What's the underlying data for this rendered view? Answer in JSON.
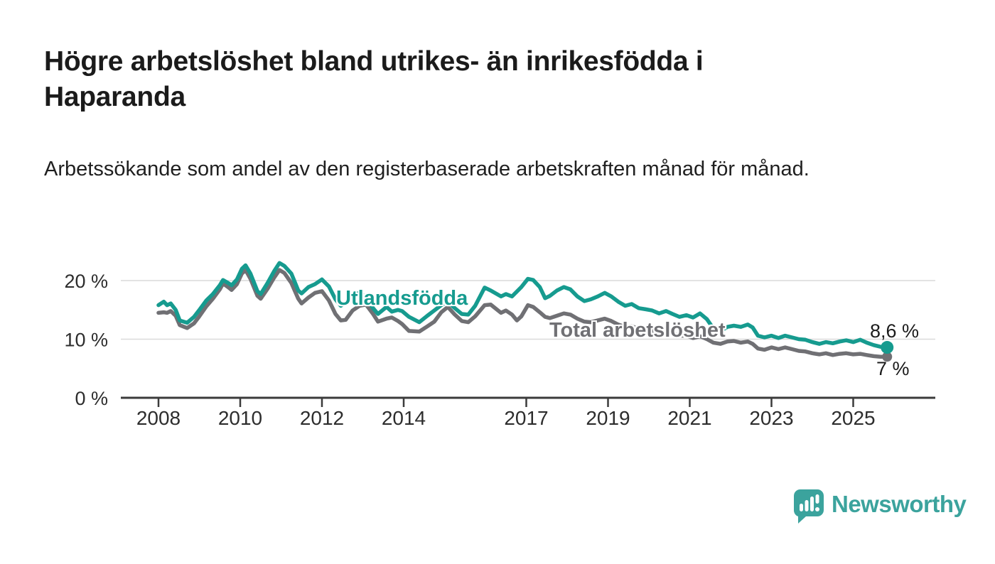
{
  "page": {
    "title": "Högre arbetslöshet bland utrikes- än inrikesfödda i Haparanda",
    "subtitle": "Arbetssökande som andel av den registerbaserade arbetskraften månad för månad."
  },
  "branding": {
    "wordmark": "Newsworthy",
    "icon": "newsworthy-speech-bubble-bar-chart-icon",
    "color": "#3BA39D"
  },
  "chart_data": {
    "type": "line",
    "title": "Högre arbetslöshet bland utrikes- än inrikesfödda i Haparanda",
    "subtitle": "Arbetssökande som andel av den registerbaserade arbetskraften månad för månad.",
    "unit": "%",
    "grid": "horizontal",
    "legend_position": "inline-labels",
    "x_axis": {
      "ticks": [
        2008,
        2010,
        2012,
        2014,
        2017,
        2019,
        2021,
        2023,
        2025
      ],
      "range": [
        2007.1,
        2027.0
      ]
    },
    "y_axis": {
      "ticks": [
        0,
        10,
        20
      ],
      "labels": [
        "0 %",
        "10 %",
        "20 %"
      ],
      "range": [
        0,
        24.2
      ]
    },
    "series": [
      {
        "name": "Utlandsfödda",
        "color": "#169b8f",
        "end_label": "8,6 %",
        "end_value": 8.6,
        "points": [
          [
            2008.0,
            15.8
          ],
          [
            2008.13,
            16.4
          ],
          [
            2008.21,
            15.8
          ],
          [
            2008.3,
            16.1
          ],
          [
            2008.42,
            15.0
          ],
          [
            2008.52,
            13.2
          ],
          [
            2008.7,
            12.8
          ],
          [
            2008.87,
            13.8
          ],
          [
            2009.0,
            15.0
          ],
          [
            2009.17,
            16.6
          ],
          [
            2009.33,
            17.7
          ],
          [
            2009.5,
            19.2
          ],
          [
            2009.58,
            20.1
          ],
          [
            2009.7,
            19.6
          ],
          [
            2009.79,
            19.2
          ],
          [
            2009.92,
            20.2
          ],
          [
            2010.04,
            22.0
          ],
          [
            2010.13,
            22.6
          ],
          [
            2010.25,
            21.2
          ],
          [
            2010.42,
            18.2
          ],
          [
            2010.5,
            17.7
          ],
          [
            2010.67,
            19.6
          ],
          [
            2010.83,
            21.6
          ],
          [
            2010.96,
            23.0
          ],
          [
            2011.08,
            22.5
          ],
          [
            2011.25,
            21.2
          ],
          [
            2011.42,
            18.3
          ],
          [
            2011.5,
            17.8
          ],
          [
            2011.67,
            18.9
          ],
          [
            2011.83,
            19.4
          ],
          [
            2012.0,
            20.2
          ],
          [
            2012.17,
            19.0
          ],
          [
            2012.33,
            16.8
          ],
          [
            2012.46,
            15.7
          ],
          [
            2012.58,
            16.3
          ],
          [
            2012.75,
            17.6
          ],
          [
            2012.92,
            17.9
          ],
          [
            2013.08,
            17.1
          ],
          [
            2013.25,
            15.3
          ],
          [
            2013.37,
            14.3
          ],
          [
            2013.58,
            15.5
          ],
          [
            2013.71,
            14.7
          ],
          [
            2013.86,
            15.0
          ],
          [
            2013.96,
            14.8
          ],
          [
            2014.13,
            13.8
          ],
          [
            2014.38,
            12.9
          ],
          [
            2014.58,
            14.0
          ],
          [
            2014.75,
            14.9
          ],
          [
            2014.92,
            15.8
          ],
          [
            2015.08,
            16.4
          ],
          [
            2015.25,
            15.3
          ],
          [
            2015.42,
            14.3
          ],
          [
            2015.58,
            14.2
          ],
          [
            2015.75,
            15.7
          ],
          [
            2015.98,
            18.8
          ],
          [
            2016.13,
            18.3
          ],
          [
            2016.38,
            17.3
          ],
          [
            2016.5,
            17.7
          ],
          [
            2016.65,
            17.3
          ],
          [
            2016.88,
            18.9
          ],
          [
            2017.04,
            20.3
          ],
          [
            2017.17,
            20.1
          ],
          [
            2017.33,
            18.9
          ],
          [
            2017.46,
            17.0
          ],
          [
            2017.58,
            17.4
          ],
          [
            2017.75,
            18.3
          ],
          [
            2017.92,
            18.9
          ],
          [
            2018.08,
            18.5
          ],
          [
            2018.25,
            17.3
          ],
          [
            2018.42,
            16.5
          ],
          [
            2018.58,
            16.8
          ],
          [
            2018.75,
            17.3
          ],
          [
            2018.92,
            17.9
          ],
          [
            2019.08,
            17.3
          ],
          [
            2019.25,
            16.4
          ],
          [
            2019.42,
            15.7
          ],
          [
            2019.58,
            16.0
          ],
          [
            2019.75,
            15.3
          ],
          [
            2019.92,
            15.1
          ],
          [
            2020.08,
            14.9
          ],
          [
            2020.25,
            14.4
          ],
          [
            2020.42,
            14.8
          ],
          [
            2020.58,
            14.3
          ],
          [
            2020.75,
            13.8
          ],
          [
            2020.92,
            14.1
          ],
          [
            2021.08,
            13.7
          ],
          [
            2021.25,
            14.4
          ],
          [
            2021.42,
            13.4
          ],
          [
            2021.58,
            11.8
          ],
          [
            2021.75,
            11.4
          ],
          [
            2021.92,
            12.1
          ],
          [
            2022.08,
            12.3
          ],
          [
            2022.25,
            12.1
          ],
          [
            2022.42,
            12.5
          ],
          [
            2022.54,
            12.0
          ],
          [
            2022.67,
            10.6
          ],
          [
            2022.83,
            10.3
          ],
          [
            2023.0,
            10.6
          ],
          [
            2023.17,
            10.2
          ],
          [
            2023.33,
            10.6
          ],
          [
            2023.5,
            10.3
          ],
          [
            2023.67,
            10.0
          ],
          [
            2023.83,
            9.9
          ],
          [
            2024.0,
            9.5
          ],
          [
            2024.17,
            9.2
          ],
          [
            2024.33,
            9.5
          ],
          [
            2024.5,
            9.3
          ],
          [
            2024.67,
            9.6
          ],
          [
            2024.83,
            9.8
          ],
          [
            2025.0,
            9.5
          ],
          [
            2025.17,
            9.9
          ],
          [
            2025.33,
            9.4
          ],
          [
            2025.5,
            9.0
          ],
          [
            2025.67,
            8.7
          ],
          [
            2025.83,
            8.6
          ]
        ]
      },
      {
        "name": "Total arbetslöshet",
        "color": "#707074",
        "end_label": "7 %",
        "end_value": 7.0,
        "points": [
          [
            2008.0,
            14.5
          ],
          [
            2008.13,
            14.6
          ],
          [
            2008.21,
            14.5
          ],
          [
            2008.3,
            14.8
          ],
          [
            2008.42,
            14.0
          ],
          [
            2008.52,
            12.4
          ],
          [
            2008.7,
            11.9
          ],
          [
            2008.87,
            12.7
          ],
          [
            2009.0,
            13.9
          ],
          [
            2009.17,
            15.6
          ],
          [
            2009.33,
            16.9
          ],
          [
            2009.5,
            18.5
          ],
          [
            2009.58,
            19.5
          ],
          [
            2009.7,
            18.9
          ],
          [
            2009.79,
            18.4
          ],
          [
            2009.92,
            19.4
          ],
          [
            2010.04,
            21.2
          ],
          [
            2010.13,
            21.8
          ],
          [
            2010.25,
            20.3
          ],
          [
            2010.42,
            17.4
          ],
          [
            2010.5,
            16.9
          ],
          [
            2010.67,
            18.6
          ],
          [
            2010.83,
            20.5
          ],
          [
            2010.96,
            21.8
          ],
          [
            2011.08,
            21.3
          ],
          [
            2011.25,
            19.6
          ],
          [
            2011.42,
            16.9
          ],
          [
            2011.5,
            16.1
          ],
          [
            2011.67,
            17.1
          ],
          [
            2011.83,
            17.9
          ],
          [
            2012.0,
            18.2
          ],
          [
            2012.17,
            16.6
          ],
          [
            2012.33,
            14.3
          ],
          [
            2012.46,
            13.2
          ],
          [
            2012.58,
            13.3
          ],
          [
            2012.75,
            14.9
          ],
          [
            2012.92,
            15.7
          ],
          [
            2013.08,
            15.9
          ],
          [
            2013.25,
            14.3
          ],
          [
            2013.37,
            13.0
          ],
          [
            2013.58,
            13.5
          ],
          [
            2013.71,
            13.7
          ],
          [
            2013.86,
            13.1
          ],
          [
            2013.96,
            12.6
          ],
          [
            2014.13,
            11.4
          ],
          [
            2014.38,
            11.3
          ],
          [
            2014.58,
            12.2
          ],
          [
            2014.75,
            13.0
          ],
          [
            2014.92,
            14.6
          ],
          [
            2015.08,
            15.5
          ],
          [
            2015.25,
            14.2
          ],
          [
            2015.42,
            13.1
          ],
          [
            2015.58,
            12.9
          ],
          [
            2015.75,
            13.9
          ],
          [
            2015.98,
            15.8
          ],
          [
            2016.13,
            15.9
          ],
          [
            2016.38,
            14.5
          ],
          [
            2016.5,
            14.9
          ],
          [
            2016.65,
            14.2
          ],
          [
            2016.77,
            13.2
          ],
          [
            2016.88,
            13.9
          ],
          [
            2017.04,
            15.8
          ],
          [
            2017.17,
            15.5
          ],
          [
            2017.33,
            14.6
          ],
          [
            2017.46,
            13.8
          ],
          [
            2017.58,
            13.6
          ],
          [
            2017.75,
            14.0
          ],
          [
            2017.92,
            14.4
          ],
          [
            2018.08,
            14.2
          ],
          [
            2018.25,
            13.5
          ],
          [
            2018.42,
            13.0
          ],
          [
            2018.58,
            12.9
          ],
          [
            2018.75,
            13.2
          ],
          [
            2018.92,
            13.5
          ],
          [
            2019.08,
            13.1
          ],
          [
            2019.25,
            12.5
          ],
          [
            2019.42,
            12.1
          ],
          [
            2019.58,
            12.2
          ],
          [
            2019.75,
            11.8
          ],
          [
            2019.92,
            11.6
          ],
          [
            2020.08,
            11.4
          ],
          [
            2020.25,
            11.2
          ],
          [
            2020.42,
            11.5
          ],
          [
            2020.58,
            11.0
          ],
          [
            2020.75,
            10.6
          ],
          [
            2020.92,
            10.6
          ],
          [
            2021.08,
            10.2
          ],
          [
            2021.25,
            10.5
          ],
          [
            2021.42,
            10.0
          ],
          [
            2021.58,
            9.4
          ],
          [
            2021.75,
            9.2
          ],
          [
            2021.92,
            9.6
          ],
          [
            2022.08,
            9.7
          ],
          [
            2022.25,
            9.4
          ],
          [
            2022.42,
            9.6
          ],
          [
            2022.54,
            9.2
          ],
          [
            2022.67,
            8.4
          ],
          [
            2022.83,
            8.2
          ],
          [
            2023.0,
            8.6
          ],
          [
            2023.17,
            8.3
          ],
          [
            2023.33,
            8.6
          ],
          [
            2023.5,
            8.3
          ],
          [
            2023.67,
            8.0
          ],
          [
            2023.83,
            7.9
          ],
          [
            2024.0,
            7.6
          ],
          [
            2024.17,
            7.4
          ],
          [
            2024.33,
            7.6
          ],
          [
            2024.5,
            7.3
          ],
          [
            2024.67,
            7.5
          ],
          [
            2024.83,
            7.6
          ],
          [
            2025.0,
            7.4
          ],
          [
            2025.17,
            7.5
          ],
          [
            2025.33,
            7.3
          ],
          [
            2025.5,
            7.1
          ],
          [
            2025.67,
            7.0
          ],
          [
            2025.83,
            7.0
          ]
        ]
      }
    ]
  }
}
